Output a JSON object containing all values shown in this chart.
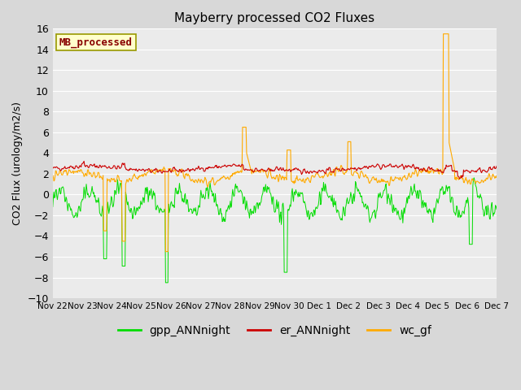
{
  "title": "Mayberry processed CO2 Fluxes",
  "ylabel": "CO2 Flux (urology/m2/s)",
  "ylim": [
    -10,
    16
  ],
  "yticks": [
    -10,
    -8,
    -6,
    -4,
    -2,
    0,
    2,
    4,
    6,
    8,
    10,
    12,
    14,
    16
  ],
  "fig_bg_color": "#d8d8d8",
  "plot_bg_color": "#ebebeb",
  "grid_color": "#ffffff",
  "legend_label": "MB_processed",
  "legend_text_color": "#880000",
  "legend_box_facecolor": "#ffffcc",
  "legend_box_edgecolor": "#999900",
  "series_colors": {
    "gpp": "#00dd00",
    "er": "#cc0000",
    "wc": "#ffaa00"
  },
  "legend_entries": [
    {
      "label": "gpp_ANNnight",
      "color": "#00dd00"
    },
    {
      "label": "er_ANNnight",
      "color": "#cc0000"
    },
    {
      "label": "wc_gf",
      "color": "#ffaa00"
    }
  ],
  "n_points": 768,
  "xtick_labels": [
    "Nov 22",
    "Nov 23",
    "Nov 24",
    "Nov 25",
    "Nov 26",
    "Nov 27",
    "Nov 28",
    "Nov 29",
    "Nov 30",
    "Dec 1",
    "Dec 2",
    "Dec 3",
    "Dec 4",
    "Dec 5",
    "Dec 6",
    "Dec 7"
  ],
  "seed": 42
}
